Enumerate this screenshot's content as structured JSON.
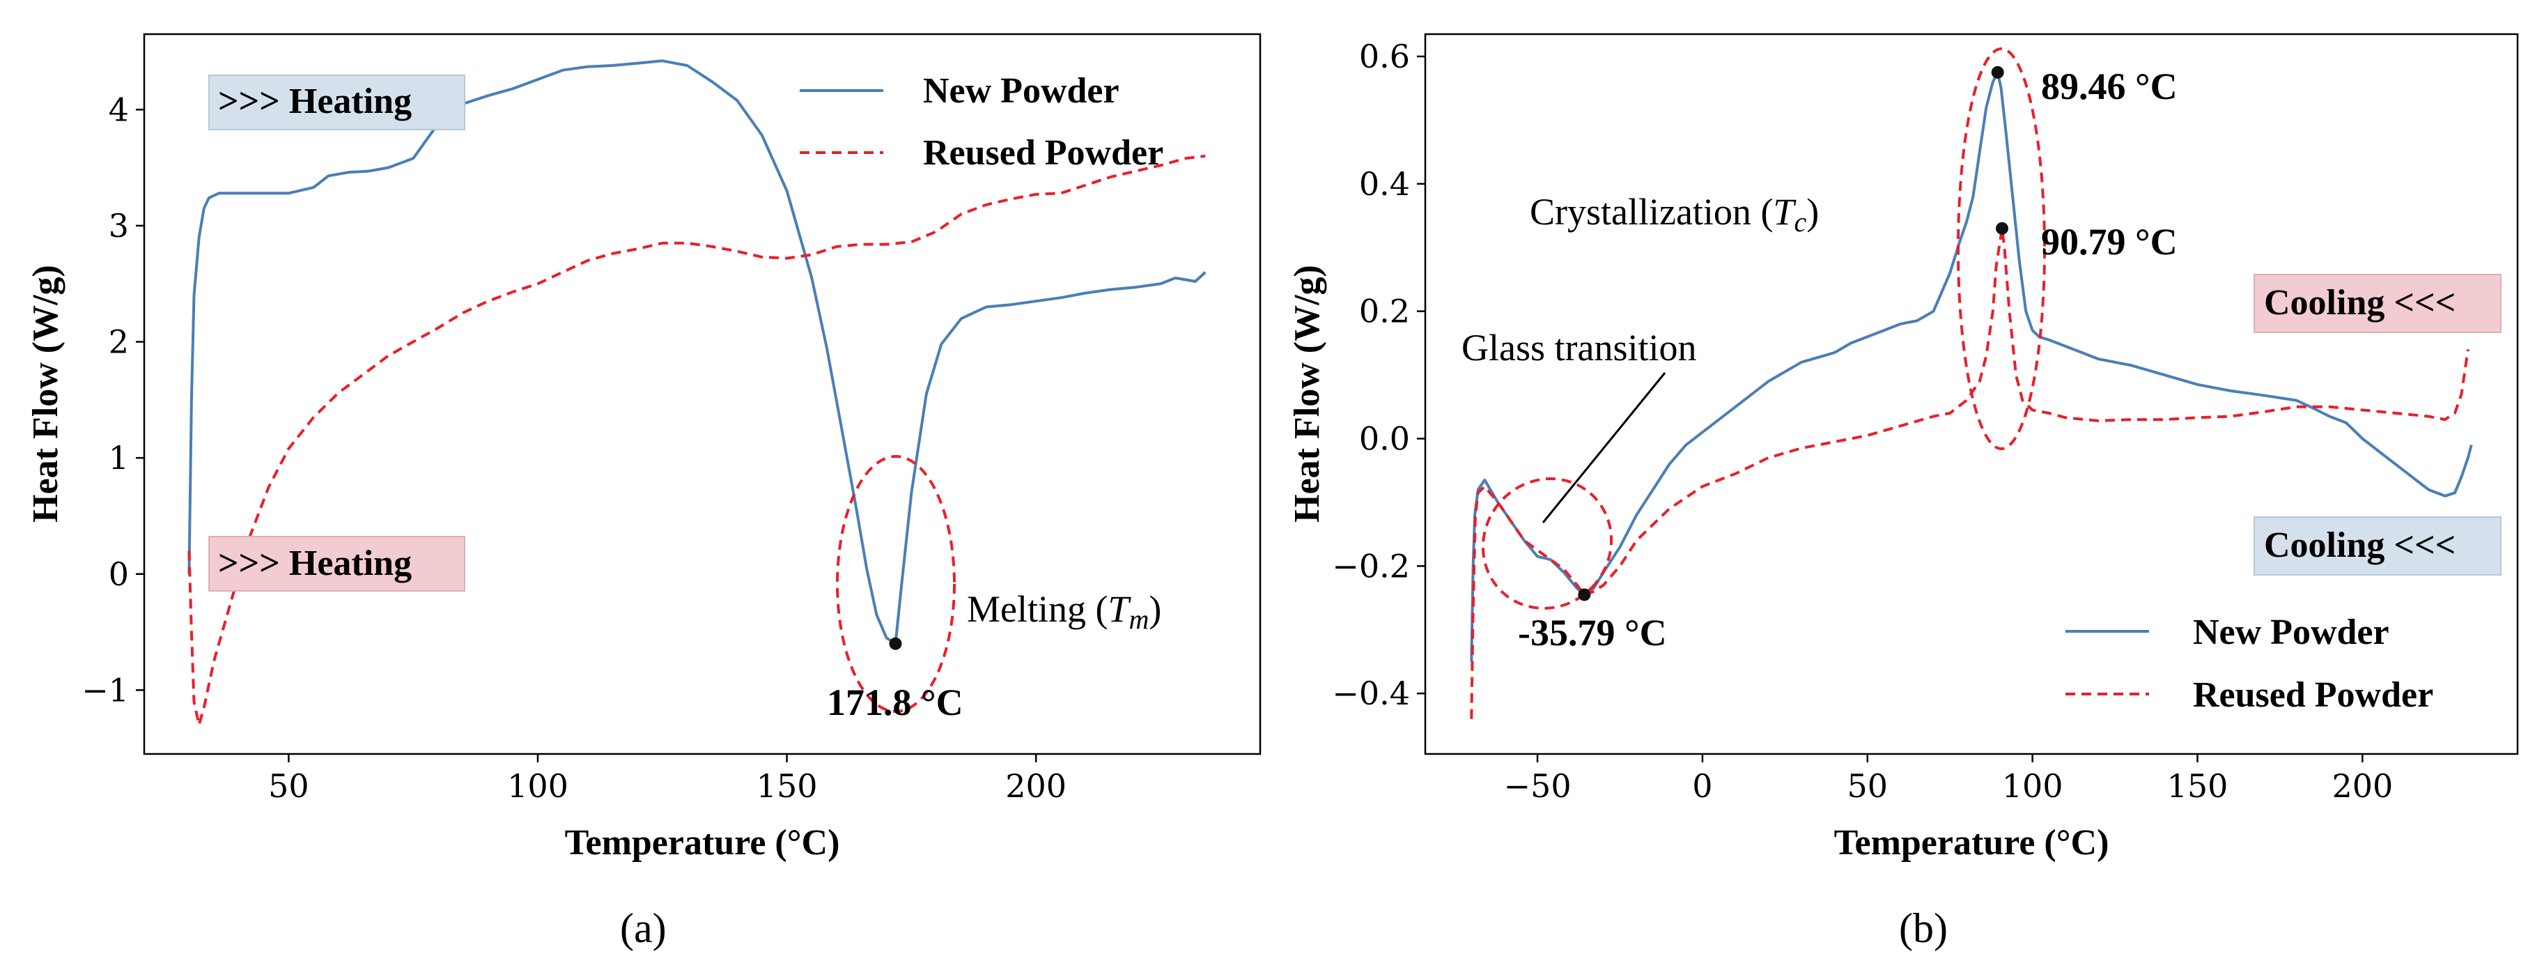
{
  "chart_data": [
    {
      "type": "line",
      "panel": "(a)",
      "xlabel": "Temperature (°C)",
      "ylabel": "Heat Flow (W/g)",
      "xlim": [
        21,
        245
      ],
      "ylim": [
        -1.55,
        4.65
      ],
      "xticks": [
        50,
        100,
        150,
        200
      ],
      "xtick_labels": [
        "50",
        "100",
        "150",
        "200"
      ],
      "yticks": [
        -1,
        0,
        1,
        2,
        3,
        4
      ],
      "ytick_labels": [
        "−1",
        "0",
        "1",
        "2",
        "3",
        "4"
      ],
      "legend": {
        "position": "top-right",
        "entries": [
          "New Powder",
          "Reused Powder"
        ]
      },
      "series": [
        {
          "name": "New Powder",
          "color": "#4a7fb5",
          "style": "solid",
          "x": [
            30,
            30.5,
            31,
            32,
            33,
            34,
            36,
            40,
            45,
            50,
            55,
            58,
            62,
            66,
            70,
            75,
            80,
            85,
            90,
            95,
            100,
            105,
            110,
            115,
            120,
            125,
            130,
            135,
            140,
            145,
            150,
            155,
            158,
            161,
            164,
            166,
            168,
            170,
            171.8,
            173,
            175,
            178,
            181,
            185,
            190,
            195,
            200,
            205,
            210,
            215,
            220,
            225,
            228,
            232,
            234
          ],
          "values": [
            0.0,
            1.5,
            2.4,
            2.9,
            3.15,
            3.24,
            3.28,
            3.28,
            3.28,
            3.28,
            3.33,
            3.43,
            3.46,
            3.47,
            3.5,
            3.58,
            3.88,
            4.05,
            4.12,
            4.18,
            4.26,
            4.34,
            4.37,
            4.38,
            4.4,
            4.42,
            4.38,
            4.24,
            4.08,
            3.78,
            3.3,
            2.55,
            1.95,
            1.25,
            0.55,
            0.05,
            -0.35,
            -0.55,
            -0.6,
            -0.1,
            0.7,
            1.55,
            1.98,
            2.2,
            2.3,
            2.32,
            2.35,
            2.38,
            2.42,
            2.45,
            2.47,
            2.5,
            2.55,
            2.52,
            2.6
          ]
        },
        {
          "name": "Reused Powder",
          "color": "#e8202a",
          "style": "dashed",
          "x": [
            30,
            30.5,
            31,
            32,
            33,
            35,
            38,
            42,
            46,
            50,
            55,
            60,
            65,
            70,
            75,
            80,
            85,
            90,
            95,
            100,
            105,
            110,
            115,
            120,
            125,
            130,
            135,
            140,
            145,
            150,
            155,
            160,
            165,
            170,
            175,
            180,
            185,
            190,
            195,
            200,
            205,
            210,
            215,
            220,
            225,
            230,
            234
          ],
          "values": [
            0.2,
            -0.5,
            -1.1,
            -1.3,
            -1.15,
            -0.75,
            -0.3,
            0.3,
            0.75,
            1.08,
            1.35,
            1.56,
            1.72,
            1.88,
            2.0,
            2.12,
            2.25,
            2.35,
            2.43,
            2.5,
            2.6,
            2.7,
            2.76,
            2.8,
            2.85,
            2.85,
            2.82,
            2.78,
            2.73,
            2.72,
            2.75,
            2.82,
            2.84,
            2.84,
            2.86,
            2.95,
            3.1,
            3.18,
            3.23,
            3.27,
            3.28,
            3.35,
            3.42,
            3.47,
            3.52,
            3.58,
            3.6
          ]
        }
      ],
      "markers": [
        {
          "x": 171.8,
          "y": -0.6,
          "label": "171.8 °C"
        }
      ],
      "annotations": [
        "Melting ",
        ">>> Heating",
        ">>> Heating"
      ],
      "math_symbols": {
        "melting": "T",
        "melting_sub": "m"
      }
    },
    {
      "type": "line",
      "panel": "(b)",
      "xlabel": "Temperature (°C)",
      "ylabel": "Heat Flow (W/g)",
      "xlim": [
        -84,
        247
      ],
      "ylim": [
        -0.495,
        0.635
      ],
      "xticks": [
        -50,
        0,
        50,
        100,
        150,
        200
      ],
      "xtick_labels": [
        "−50",
        "0",
        "50",
        "100",
        "150",
        "200"
      ],
      "yticks": [
        -0.4,
        -0.2,
        0.0,
        0.2,
        0.4,
        0.6
      ],
      "ytick_labels": [
        "−0.4",
        "−0.2",
        "0.0",
        "0.2",
        "0.4",
        "0.6"
      ],
      "legend": {
        "position": "bottom-right",
        "entries": [
          "New Powder",
          "Reused Powder"
        ]
      },
      "series": [
        {
          "name": "New Powder",
          "color": "#4a7fb5",
          "style": "solid",
          "x": [
            -70,
            -69.5,
            -69,
            -68,
            -66,
            -62,
            -58,
            -54,
            -50,
            -46,
            -42,
            -38,
            -35.79,
            -33,
            -30,
            -25,
            -20,
            -15,
            -10,
            -5,
            0,
            10,
            20,
            30,
            40,
            45,
            50,
            55,
            60,
            65,
            70,
            75,
            78,
            80,
            82,
            84,
            86,
            88,
            89.46,
            90.5,
            92,
            94,
            96,
            98,
            100,
            102,
            105,
            110,
            120,
            130,
            140,
            150,
            160,
            170,
            180,
            185,
            190,
            195,
            200,
            205,
            210,
            215,
            220,
            225,
            228,
            230,
            232,
            233
          ],
          "values": [
            -0.35,
            -0.2,
            -0.12,
            -0.08,
            -0.065,
            -0.1,
            -0.13,
            -0.16,
            -0.185,
            -0.19,
            -0.21,
            -0.235,
            -0.245,
            -0.235,
            -0.21,
            -0.17,
            -0.12,
            -0.08,
            -0.04,
            -0.01,
            0.01,
            0.05,
            0.09,
            0.12,
            0.135,
            0.15,
            0.16,
            0.17,
            0.18,
            0.185,
            0.2,
            0.26,
            0.31,
            0.34,
            0.38,
            0.45,
            0.52,
            0.56,
            0.575,
            0.55,
            0.48,
            0.38,
            0.28,
            0.2,
            0.17,
            0.16,
            0.155,
            0.145,
            0.125,
            0.115,
            0.1,
            0.085,
            0.075,
            0.068,
            0.06,
            0.048,
            0.035,
            0.025,
            0.0,
            -0.02,
            -0.04,
            -0.06,
            -0.08,
            -0.09,
            -0.085,
            -0.06,
            -0.03,
            -0.01
          ]
        },
        {
          "name": "Reused Powder",
          "color": "#e8202a",
          "style": "dashed",
          "x": [
            -70,
            -69.6,
            -69.2,
            -68.8,
            -68,
            -66,
            -62,
            -58,
            -54,
            -50,
            -46,
            -42,
            -38,
            -35.79,
            -33,
            -30,
            -25,
            -20,
            -10,
            0,
            10,
            20,
            30,
            40,
            50,
            60,
            70,
            75,
            80,
            84,
            86,
            88,
            89,
            90.79,
            91.5,
            93,
            95,
            97,
            100,
            105,
            110,
            120,
            130,
            140,
            150,
            160,
            170,
            180,
            190,
            200,
            210,
            220,
            225,
            228,
            230,
            232
          ],
          "values": [
            -0.44,
            -0.3,
            -0.2,
            -0.12,
            -0.085,
            -0.075,
            -0.1,
            -0.13,
            -0.16,
            -0.175,
            -0.19,
            -0.205,
            -0.23,
            -0.245,
            -0.24,
            -0.23,
            -0.2,
            -0.16,
            -0.11,
            -0.075,
            -0.055,
            -0.03,
            -0.015,
            -0.005,
            0.005,
            0.02,
            0.035,
            0.04,
            0.06,
            0.09,
            0.13,
            0.2,
            0.27,
            0.33,
            0.3,
            0.2,
            0.1,
            0.06,
            0.045,
            0.04,
            0.033,
            0.028,
            0.03,
            0.03,
            0.033,
            0.035,
            0.042,
            0.05,
            0.05,
            0.045,
            0.04,
            0.035,
            0.03,
            0.04,
            0.07,
            0.14
          ]
        }
      ],
      "markers": [
        {
          "x": 89.46,
          "y": 0.575,
          "label": "89.46 °C"
        },
        {
          "x": 90.79,
          "y": 0.33,
          "label": "90.79 °C"
        },
        {
          "x": -35.79,
          "y": -0.245,
          "label": "-35.79 °C"
        }
      ],
      "annotations": [
        "Crystallization ",
        "Glass transition",
        "Cooling <<<",
        "Cooling <<<"
      ],
      "math_symbols": {
        "crystallization": "T",
        "crystallization_sub": "c"
      }
    }
  ],
  "captions": [
    "(a)",
    "(b)"
  ]
}
